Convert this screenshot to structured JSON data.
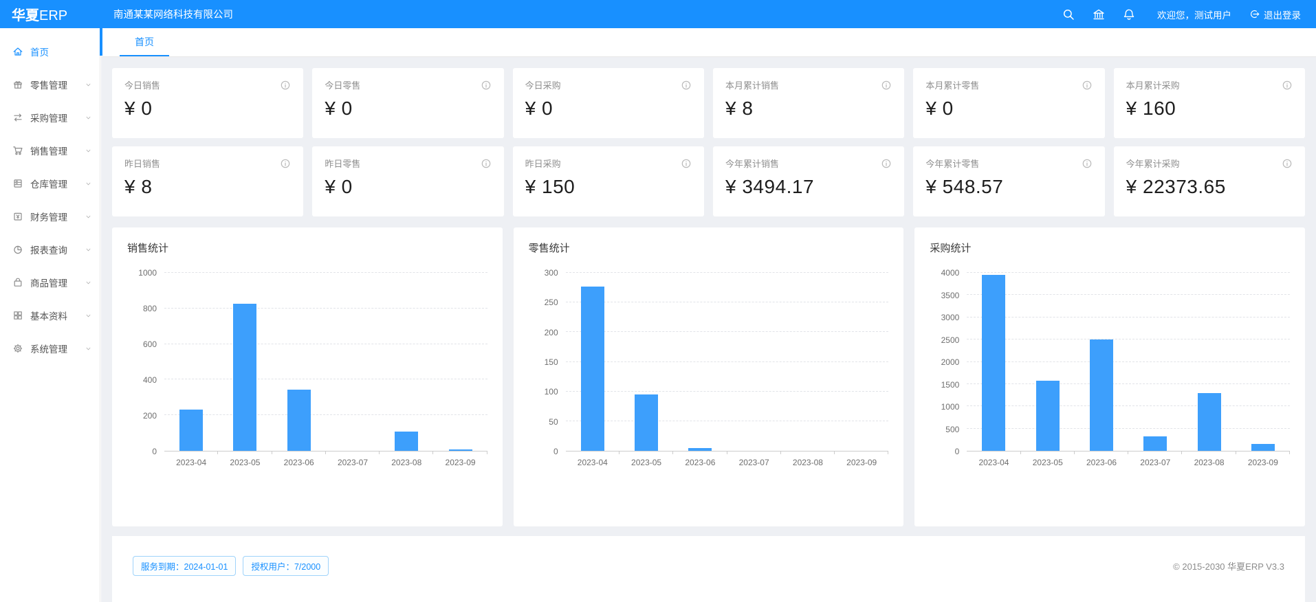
{
  "colors": {
    "accent": "#1890ff",
    "bar": "#3d9ffc"
  },
  "header": {
    "logo_bold": "华夏",
    "logo_suffix": "ERP",
    "company": "南通某某网络科技有限公司",
    "welcome": "欢迎您，测试用户",
    "logout": "退出登录"
  },
  "sidebar": {
    "items": [
      {
        "label": "首页",
        "icon": "home",
        "active": true,
        "has_children": false
      },
      {
        "label": "零售管理",
        "icon": "shop",
        "active": false,
        "has_children": true
      },
      {
        "label": "采购管理",
        "icon": "swap",
        "active": false,
        "has_children": true
      },
      {
        "label": "销售管理",
        "icon": "cart",
        "active": false,
        "has_children": true
      },
      {
        "label": "仓库管理",
        "icon": "archive",
        "active": false,
        "has_children": true
      },
      {
        "label": "财务管理",
        "icon": "wallet",
        "active": false,
        "has_children": true
      },
      {
        "label": "报表查询",
        "icon": "pie",
        "active": false,
        "has_children": true
      },
      {
        "label": "商品管理",
        "icon": "bag",
        "active": false,
        "has_children": true
      },
      {
        "label": "基本资料",
        "icon": "grid",
        "active": false,
        "has_children": true
      },
      {
        "label": "系统管理",
        "icon": "gear",
        "active": false,
        "has_children": true
      }
    ]
  },
  "tabs": {
    "items": [
      {
        "label": "首页",
        "active": true
      }
    ]
  },
  "stats": {
    "cards": [
      {
        "label": "今日销售",
        "value": "¥ 0"
      },
      {
        "label": "今日零售",
        "value": "¥ 0"
      },
      {
        "label": "今日采购",
        "value": "¥ 0"
      },
      {
        "label": "本月累计销售",
        "value": "¥ 8"
      },
      {
        "label": "本月累计零售",
        "value": "¥ 0"
      },
      {
        "label": "本月累计采购",
        "value": "¥ 160"
      },
      {
        "label": "昨日销售",
        "value": "¥ 8"
      },
      {
        "label": "昨日零售",
        "value": "¥ 0"
      },
      {
        "label": "昨日采购",
        "value": "¥ 150"
      },
      {
        "label": "今年累计销售",
        "value": "¥ 3494.17"
      },
      {
        "label": "今年累计零售",
        "value": "¥ 548.57"
      },
      {
        "label": "今年累计采购",
        "value": "¥ 22373.65"
      }
    ]
  },
  "chart_data": [
    {
      "type": "bar",
      "title": "销售统计",
      "categories": [
        "2023-04",
        "2023-05",
        "2023-06",
        "2023-07",
        "2023-08",
        "2023-09"
      ],
      "values": [
        230,
        825,
        345,
        0,
        110,
        8
      ],
      "xlabel": "",
      "ylabel": "",
      "ylim": [
        0,
        1000
      ],
      "ytick_step": 200,
      "grid": true,
      "legend": "none",
      "bar_color": "#3d9ffc"
    },
    {
      "type": "bar",
      "title": "零售统计",
      "categories": [
        "2023-04",
        "2023-05",
        "2023-06",
        "2023-07",
        "2023-08",
        "2023-09"
      ],
      "values": [
        277,
        95,
        5,
        0,
        0,
        0
      ],
      "xlabel": "",
      "ylabel": "",
      "ylim": [
        0,
        300
      ],
      "ytick_step": 50,
      "grid": true,
      "legend": "none",
      "bar_color": "#3d9ffc"
    },
    {
      "type": "bar",
      "title": "采购统计",
      "categories": [
        "2023-04",
        "2023-05",
        "2023-06",
        "2023-07",
        "2023-08",
        "2023-09"
      ],
      "values": [
        3950,
        1580,
        2500,
        330,
        1300,
        160
      ],
      "xlabel": "",
      "ylabel": "",
      "ylim": [
        0,
        4000
      ],
      "ytick_step": 500,
      "grid": true,
      "legend": "none",
      "bar_color": "#3d9ffc"
    }
  ],
  "footer": {
    "badges": [
      {
        "text": "服务到期：2024-01-01"
      },
      {
        "text": "授权用户：7/2000"
      }
    ],
    "copyright": "© 2015-2030 华夏ERP V3.3"
  }
}
